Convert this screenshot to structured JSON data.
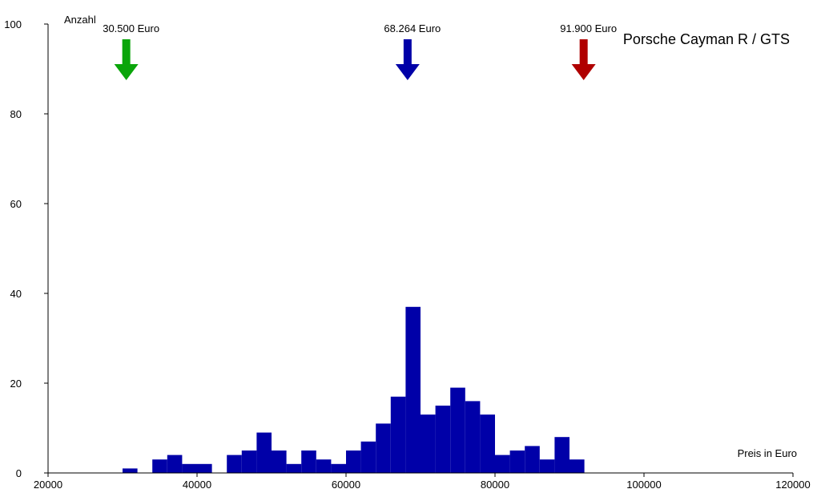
{
  "chart_data": {
    "type": "bar",
    "title": "Porsche Cayman R / GTS",
    "xlabel": "Preis in Euro",
    "ylabel": "Anzahl",
    "xlim": [
      20000,
      120000
    ],
    "ylim": [
      0,
      100
    ],
    "x_ticks": [
      "20000",
      "40000",
      "60000",
      "80000",
      "100000",
      "120000"
    ],
    "y_ticks": [
      "0",
      "20",
      "40",
      "60",
      "80",
      "100"
    ],
    "bin_width": 2000,
    "bins": [
      {
        "x_start": 30000,
        "count": 1
      },
      {
        "x_start": 34000,
        "count": 3
      },
      {
        "x_start": 36000,
        "count": 4
      },
      {
        "x_start": 38000,
        "count": 2
      },
      {
        "x_start": 40000,
        "count": 2
      },
      {
        "x_start": 44000,
        "count": 4
      },
      {
        "x_start": 46000,
        "count": 5
      },
      {
        "x_start": 48000,
        "count": 9
      },
      {
        "x_start": 50000,
        "count": 5
      },
      {
        "x_start": 52000,
        "count": 2
      },
      {
        "x_start": 54000,
        "count": 5
      },
      {
        "x_start": 56000,
        "count": 3
      },
      {
        "x_start": 58000,
        "count": 2
      },
      {
        "x_start": 60000,
        "count": 5
      },
      {
        "x_start": 62000,
        "count": 7
      },
      {
        "x_start": 64000,
        "count": 11
      },
      {
        "x_start": 66000,
        "count": 17
      },
      {
        "x_start": 68000,
        "count": 37
      },
      {
        "x_start": 70000,
        "count": 13
      },
      {
        "x_start": 72000,
        "count": 15
      },
      {
        "x_start": 74000,
        "count": 19
      },
      {
        "x_start": 76000,
        "count": 16
      },
      {
        "x_start": 78000,
        "count": 13
      },
      {
        "x_start": 80000,
        "count": 4
      },
      {
        "x_start": 82000,
        "count": 5
      },
      {
        "x_start": 84000,
        "count": 6
      },
      {
        "x_start": 86000,
        "count": 3
      },
      {
        "x_start": 88000,
        "count": 8
      },
      {
        "x_start": 90000,
        "count": 3
      }
    ],
    "markers": [
      {
        "label": "30.500 Euro",
        "value": 30500,
        "color": "#0aa50a",
        "meaning": "min"
      },
      {
        "label": "68.264 Euro",
        "value": 68264,
        "color": "#0000a8",
        "meaning": "mean"
      },
      {
        "label": "91.900 Euro",
        "value": 91900,
        "color": "#b00000",
        "meaning": "max"
      }
    ],
    "bar_color": "#0000a8",
    "grid": false
  }
}
